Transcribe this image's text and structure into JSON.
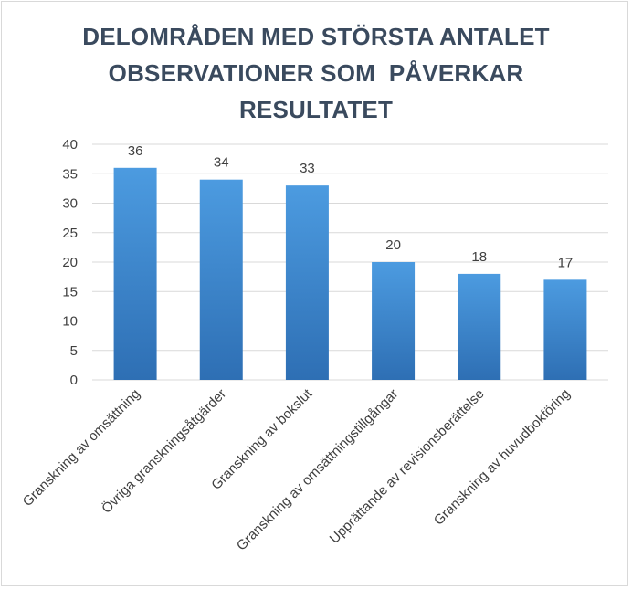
{
  "chart_data": {
    "type": "bar",
    "title_lines": [
      "DELOMRÅDEN MED STÖRSTA ANTALET",
      "OBSERVATIONER SOM  PÅVERKAR",
      "RESULTATET"
    ],
    "categories": [
      "Granskning av omsättning",
      "Övriga granskningsåtgärder",
      "Granskning av bokslut",
      "Granskning av omsättningstillgångar",
      "Upprättande av revisionsberättelse",
      "Granskning av huvudbokföring"
    ],
    "values": [
      36,
      34,
      33,
      20,
      18,
      17
    ],
    "ylim": [
      0,
      40
    ],
    "yticks": [
      0,
      5,
      10,
      15,
      20,
      25,
      30,
      35,
      40
    ],
    "xlabel": "",
    "ylabel": "",
    "grid": true,
    "colors": {
      "bar_top": "#4c9be0",
      "bar_bottom": "#2e6fb4",
      "title": "#3a4a5e",
      "grid": "#d9d9d9"
    }
  }
}
